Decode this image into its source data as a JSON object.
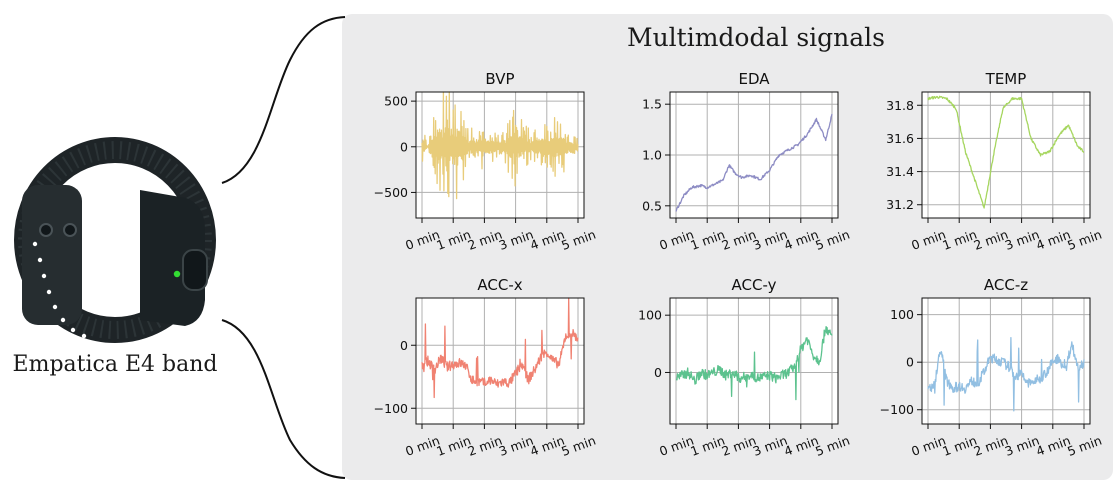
{
  "device": {
    "caption": "Empatica E4 band",
    "icon": "wristband-icon",
    "led_color": "#33dd33"
  },
  "panel": {
    "title": "Multimdodal signals",
    "background": "#ebebec"
  },
  "chart_data": [
    {
      "type": "line",
      "title": "BVP",
      "color": "#e8cc7a",
      "x_ticks": [
        "0 min",
        "1 min",
        "2 min",
        "3 min",
        "4 min",
        "5 min"
      ],
      "xlim": [
        0,
        5
      ],
      "y_ticks": [
        500,
        0,
        -500
      ],
      "y_tick_labels": [
        "500",
        "0",
        "−500"
      ],
      "ylim": [
        -780,
        600
      ],
      "style": "burst",
      "baseline": 0,
      "series": [
        {
          "x": [
            0,
            0.5,
            1,
            1.5,
            2,
            2.5,
            3,
            3.5,
            4,
            4.5,
            5
          ],
          "y": [
            300,
            -550,
            -720,
            -200,
            -250,
            -120,
            -450,
            -150,
            -350,
            -300,
            -80
          ]
        }
      ]
    },
    {
      "type": "line",
      "title": "EDA",
      "color": "#8d8cc4",
      "x_ticks": [
        "0 min",
        "1 min",
        "2 min",
        "3 min",
        "4 min",
        "5 min"
      ],
      "xlim": [
        0,
        5
      ],
      "y_ticks": [
        1.5,
        1.0,
        0.5
      ],
      "y_tick_labels": [
        "1.5",
        "1.0",
        "0.5"
      ],
      "ylim": [
        0.38,
        1.62
      ],
      "style": "trend",
      "series": [
        {
          "x": [
            0,
            0.25,
            0.5,
            0.8,
            1,
            1.3,
            1.5,
            1.7,
            1.9,
            2.1,
            2.4,
            2.7,
            3,
            3.3,
            3.6,
            3.9,
            4.2,
            4.5,
            4.8,
            5
          ],
          "y": [
            0.45,
            0.6,
            0.68,
            0.7,
            0.68,
            0.72,
            0.75,
            0.9,
            0.82,
            0.78,
            0.8,
            0.76,
            0.85,
            1.0,
            1.05,
            1.1,
            1.2,
            1.35,
            1.15,
            1.4
          ]
        }
      ]
    },
    {
      "type": "line",
      "title": "TEMP",
      "color": "#a6d65f",
      "x_ticks": [
        "0 min",
        "1 min",
        "2 min",
        "3 min",
        "4 min",
        "5 min"
      ],
      "xlim": [
        0,
        5
      ],
      "y_ticks": [
        31.8,
        31.6,
        31.4,
        31.2
      ],
      "y_tick_labels": [
        "31.8",
        "31.6",
        "31.4",
        "31.2"
      ],
      "ylim": [
        31.12,
        31.88
      ],
      "style": "trend",
      "series": [
        {
          "x": [
            0,
            0.3,
            0.6,
            0.9,
            1.2,
            1.5,
            1.8,
            2.1,
            2.4,
            2.7,
            3,
            3.3,
            3.6,
            3.9,
            4.2,
            4.5,
            4.8,
            5
          ],
          "y": [
            31.84,
            31.85,
            31.84,
            31.78,
            31.52,
            31.35,
            31.18,
            31.5,
            31.78,
            31.84,
            31.84,
            31.6,
            31.5,
            31.52,
            31.62,
            31.68,
            31.55,
            31.52
          ]
        }
      ]
    },
    {
      "type": "line",
      "title": "ACC-x",
      "color": "#f08272",
      "x_ticks": [
        "0 min",
        "1 min",
        "2 min",
        "3 min",
        "4 min",
        "5 min"
      ],
      "xlim": [
        0,
        5
      ],
      "y_ticks": [
        0,
        -100
      ],
      "y_tick_labels": [
        "0",
        "−100"
      ],
      "ylim": [
        -125,
        75
      ],
      "style": "signal",
      "series": [
        {
          "x": [
            0,
            0.2,
            0.4,
            0.6,
            0.8,
            1,
            1.2,
            1.4,
            1.6,
            1.8,
            2,
            2.2,
            2.4,
            2.6,
            2.8,
            3,
            3.2,
            3.4,
            3.6,
            3.8,
            4,
            4.2,
            4.4,
            4.6,
            4.8,
            5
          ],
          "y": [
            -30,
            -25,
            -40,
            -20,
            -35,
            -30,
            -28,
            -32,
            -55,
            -58,
            -60,
            -55,
            -62,
            -58,
            -60,
            -45,
            -30,
            -55,
            -40,
            -20,
            -10,
            -25,
            -30,
            15,
            20,
            10
          ]
        }
      ]
    },
    {
      "type": "line",
      "title": "ACC-y",
      "color": "#5cc28e",
      "x_ticks": [
        "0 min",
        "1 min",
        "2 min",
        "3 min",
        "4 min",
        "5 min"
      ],
      "xlim": [
        0,
        5
      ],
      "y_ticks": [
        100,
        0
      ],
      "y_tick_labels": [
        "100",
        "0"
      ],
      "ylim": [
        -90,
        130
      ],
      "style": "signal",
      "series": [
        {
          "x": [
            0,
            0.2,
            0.4,
            0.6,
            0.8,
            1,
            1.2,
            1.4,
            1.6,
            1.8,
            2,
            2.2,
            2.4,
            2.6,
            2.8,
            3,
            3.2,
            3.4,
            3.6,
            3.8,
            4,
            4.2,
            4.4,
            4.6,
            4.8,
            5
          ],
          "y": [
            -10,
            -5,
            0,
            -15,
            0,
            -5,
            0,
            5,
            -5,
            0,
            -10,
            -8,
            -5,
            -10,
            -8,
            -5,
            -10,
            -5,
            0,
            10,
            40,
            60,
            30,
            20,
            80,
            60
          ]
        }
      ]
    },
    {
      "type": "line",
      "title": "ACC-z",
      "color": "#92bfe2",
      "x_ticks": [
        "0 min",
        "1 min",
        "2 min",
        "3 min",
        "4 min",
        "5 min"
      ],
      "xlim": [
        0,
        5
      ],
      "y_ticks": [
        100,
        0,
        -100
      ],
      "y_tick_labels": [
        "100",
        "0",
        "−100"
      ],
      "ylim": [
        -130,
        135
      ],
      "style": "signal",
      "series": [
        {
          "x": [
            0,
            0.2,
            0.4,
            0.6,
            0.8,
            1,
            1.2,
            1.4,
            1.6,
            1.8,
            2,
            2.2,
            2.4,
            2.6,
            2.8,
            3,
            3.2,
            3.4,
            3.6,
            3.8,
            4,
            4.2,
            4.4,
            4.6,
            4.8,
            5
          ],
          "y": [
            -55,
            -50,
            30,
            -40,
            -55,
            -50,
            -55,
            -40,
            -45,
            -20,
            10,
            5,
            0,
            -10,
            -30,
            -25,
            -45,
            -40,
            -35,
            -20,
            0,
            10,
            -20,
            40,
            -10,
            0
          ]
        }
      ]
    }
  ]
}
